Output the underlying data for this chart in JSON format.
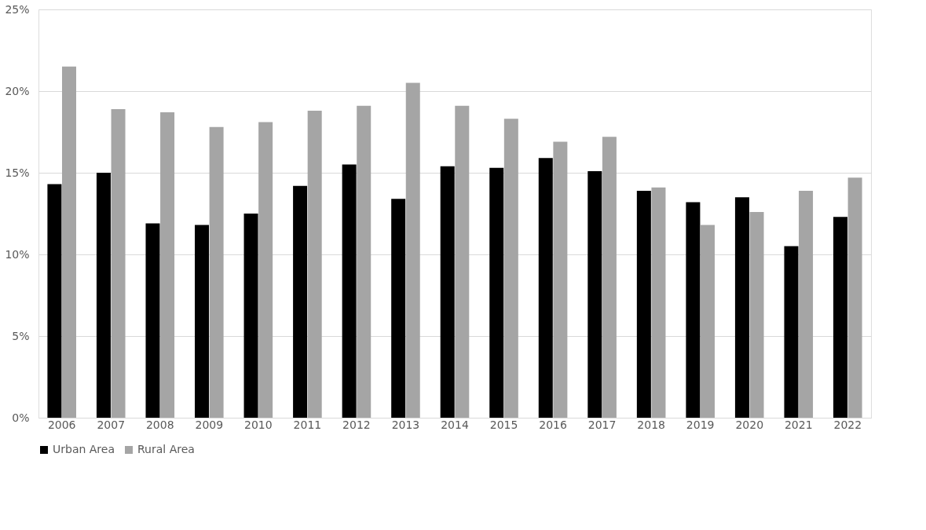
{
  "chart_data": {
    "type": "bar",
    "categories": [
      "2006",
      "2007",
      "2008",
      "2009",
      "2010",
      "2011",
      "2012",
      "2013",
      "2014",
      "2015",
      "2016",
      "2017",
      "2018",
      "2019",
      "2020",
      "2021",
      "2022"
    ],
    "series": [
      {
        "name": "Urban Area",
        "color": "#000000",
        "values": [
          14.3,
          15.0,
          11.9,
          11.8,
          12.5,
          14.2,
          15.5,
          13.4,
          15.4,
          15.3,
          15.9,
          15.1,
          13.9,
          13.2,
          13.5,
          10.5,
          12.3
        ]
      },
      {
        "name": "Rural Area",
        "color": "#a5a5a5",
        "values": [
          21.5,
          18.9,
          18.7,
          17.8,
          18.1,
          18.8,
          19.1,
          20.5,
          19.1,
          18.3,
          16.9,
          17.2,
          14.1,
          11.8,
          12.6,
          13.9,
          14.7
        ]
      }
    ],
    "ylim": [
      0,
      25
    ],
    "yticks": [
      {
        "value": 0,
        "label": "0%"
      },
      {
        "value": 5,
        "label": "5%"
      },
      {
        "value": 10,
        "label": "10%"
      },
      {
        "value": 15,
        "label": "15%"
      },
      {
        "value": 20,
        "label": "20%"
      },
      {
        "value": 25,
        "label": "25%"
      }
    ],
    "grid": "y",
    "legend": "bottom"
  }
}
